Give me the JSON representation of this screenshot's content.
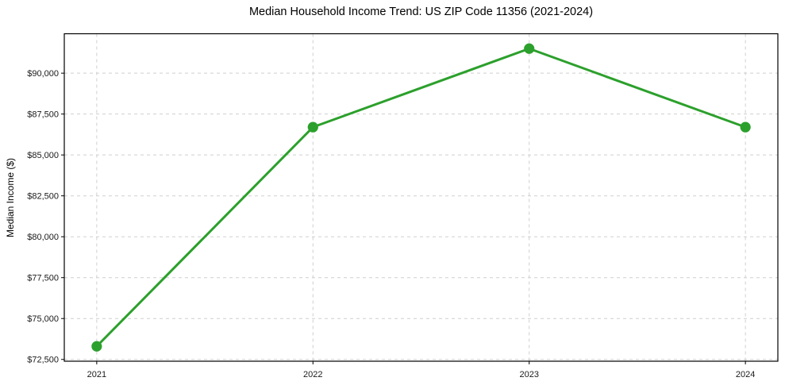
{
  "chart_data": {
    "type": "line",
    "title": "Median Household Income Trend: US ZIP Code 11356 (2021-2024)",
    "xlabel": "",
    "ylabel": "Median Income ($)",
    "x": [
      2021,
      2022,
      2023,
      2024
    ],
    "x_tick_labels": [
      "2021",
      "2022",
      "2023",
      "2024"
    ],
    "values": [
      73300,
      86700,
      91500,
      86700
    ],
    "y_ticks": [
      {
        "value": 72500,
        "label": "$72,500"
      },
      {
        "value": 75000,
        "label": "$75,000"
      },
      {
        "value": 77500,
        "label": "$77,500"
      },
      {
        "value": 80000,
        "label": "$80,000"
      },
      {
        "value": 82500,
        "label": "$82,500"
      },
      {
        "value": 85000,
        "label": "$85,000"
      },
      {
        "value": 87500,
        "label": "$87,500"
      },
      {
        "value": 90000,
        "label": "$90,000"
      }
    ],
    "xlim": [
      2020.85,
      2024.15
    ],
    "ylim": [
      72390,
      92410
    ],
    "grid": true,
    "grid_style": "dashed",
    "legend_position": "none",
    "marker": "circle",
    "marker_radius": 6.6,
    "line_width": 3,
    "colors": {
      "line": "#2ca02c",
      "grid": "#cfcfcf",
      "frame": "#000000",
      "text": "#1a1a1a",
      "background": "#ffffff"
    }
  }
}
